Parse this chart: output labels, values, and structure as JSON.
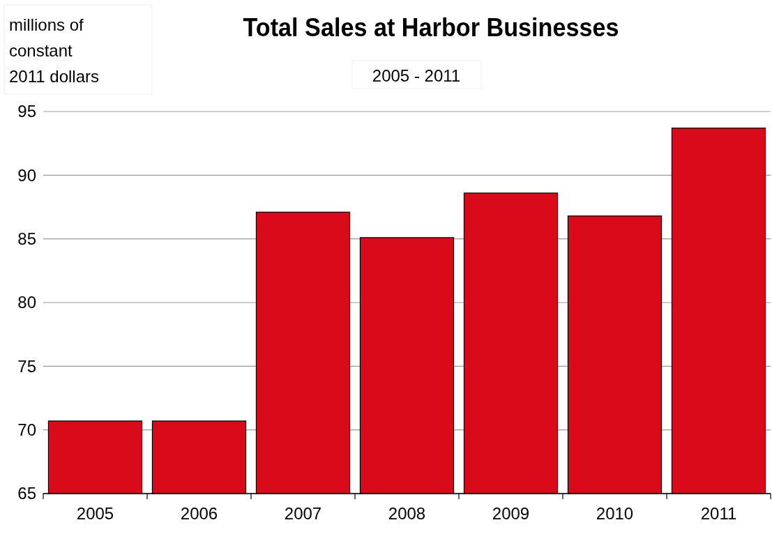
{
  "chart_data": {
    "type": "bar",
    "title": "Total Sales at Harbor Businesses",
    "subtitle": "2005 - 2011",
    "ylabel": "millions of constant 2011 dollars",
    "categories": [
      "2005",
      "2006",
      "2007",
      "2008",
      "2009",
      "2010",
      "2011"
    ],
    "values": [
      70.7,
      70.7,
      87.1,
      85.1,
      88.6,
      86.8,
      93.7
    ],
    "color": "#d90a19",
    "ylim": [
      65,
      95
    ],
    "yticks": [
      65,
      70,
      75,
      80,
      85,
      90,
      95
    ],
    "grid": "y"
  }
}
